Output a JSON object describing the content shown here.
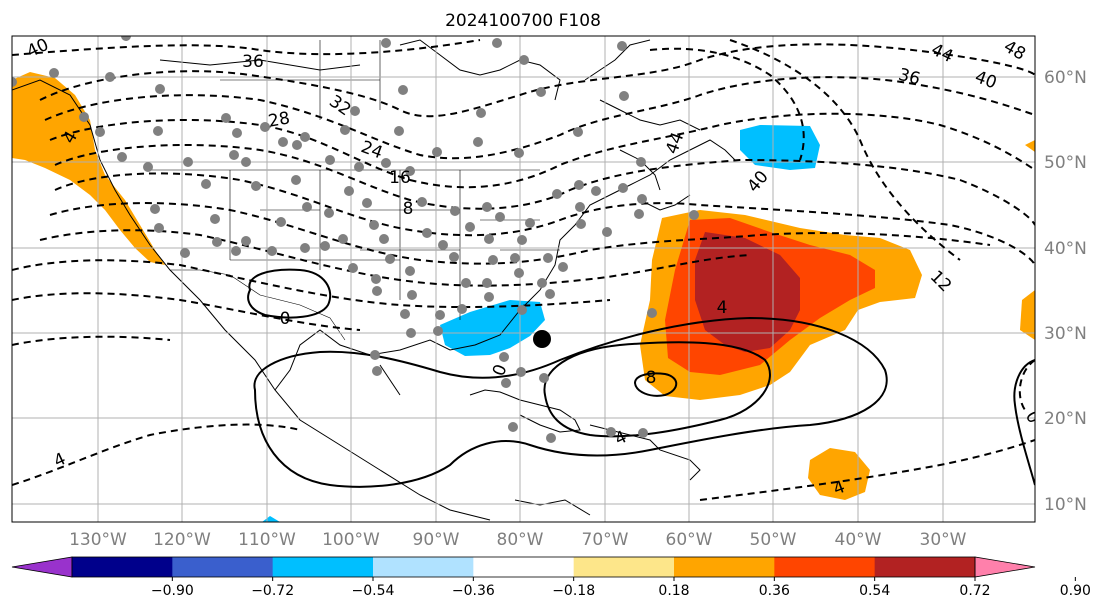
{
  "title": "2024100700 F108",
  "lon_labels": [
    "130°W",
    "120°W",
    "110°W",
    "100°W",
    "90°W",
    "80°W",
    "70°W",
    "60°W",
    "50°W",
    "40°W",
    "30°W"
  ],
  "lat_labels": [
    "60°N",
    "50°N",
    "40°N",
    "30°N",
    "20°N",
    "10°N"
  ],
  "colorbar": {
    "ticks": [
      "−0.90",
      "−0.72",
      "−0.54",
      "−0.36",
      "−0.18",
      "0.18",
      "0.36",
      "0.54",
      "0.72",
      "0.90"
    ],
    "colors": [
      "#9932cc",
      "#00008b",
      "#3a5fcd",
      "#00bfff",
      "#b0e2ff",
      "#ffffff",
      "#fde68a",
      "#ffa500",
      "#ff4500",
      "#b22222",
      "#ff80ab"
    ]
  },
  "contour_labels": {
    "l40": "40",
    "l36": "36",
    "l28": "28",
    "l32": "32",
    "l24": "24",
    "l16": "16",
    "l8": "8",
    "l0a": "0",
    "l0b": "0",
    "l0c": "0",
    "l4a": "4",
    "l4b": "4",
    "l4c": "4",
    "l4d": "4",
    "l4e": "4",
    "l8b": "8",
    "l12": "12",
    "l40b": "40",
    "l44": "44",
    "l48": "48",
    "l40c": "40",
    "l36b": "36",
    "l44b": "44",
    "l40d": "40",
    "l0d": "0"
  }
}
